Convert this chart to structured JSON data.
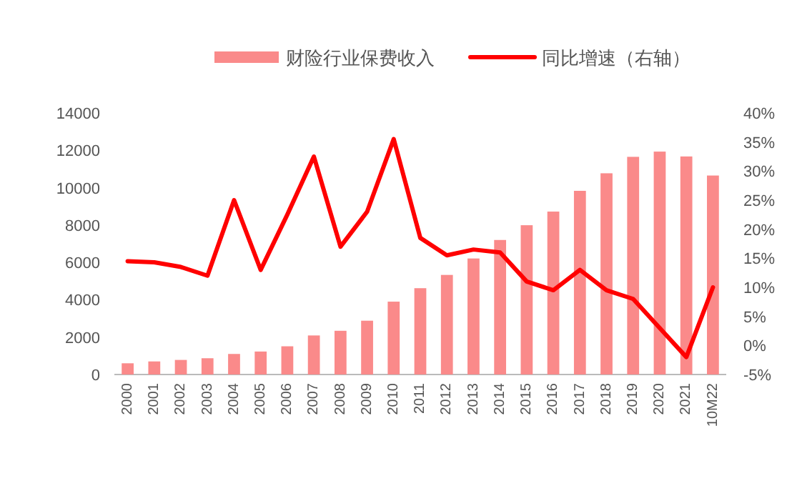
{
  "chart_data": {
    "type": "bar",
    "categories": [
      "2000",
      "2001",
      "2002",
      "2003",
      "2004",
      "2005",
      "2006",
      "2007",
      "2008",
      "2009",
      "2010",
      "2011",
      "2012",
      "2013",
      "2014",
      "2015",
      "2016",
      "2017",
      "2018",
      "2019",
      "2020",
      "2021",
      "10M22"
    ],
    "series": [
      {
        "name": "财险行业保费收入",
        "color": "#fa8a8a",
        "values": [
          600,
          700,
          780,
          870,
          1100,
          1230,
          1510,
          2090,
          2340,
          2880,
          3900,
          4620,
          5330,
          6210,
          7200,
          7990,
          8720,
          9830,
          10770,
          11650,
          11930,
          11670,
          10650
        ]
      },
      {
        "name": "同比增速（右轴）",
        "type": "line",
        "axis": "y2",
        "color": "#ff0000",
        "values": [
          14.5,
          14.3,
          13.5,
          12,
          25,
          13,
          22.5,
          32.5,
          17,
          23,
          35.5,
          18.5,
          15.5,
          16.5,
          16,
          11,
          9.5,
          13,
          9.5,
          8,
          3,
          -2,
          10
        ]
      }
    ],
    "ylim": [
      0,
      14000
    ],
    "yticks": [
      0,
      2000,
      4000,
      6000,
      8000,
      10000,
      12000,
      14000
    ],
    "y2lim": [
      -5,
      40
    ],
    "y2ticks": [
      {
        "value": -5,
        "label": "-5%"
      },
      {
        "value": 0,
        "label": "0%"
      },
      {
        "value": 5,
        "label": "5%"
      },
      {
        "value": 10,
        "label": "10%"
      },
      {
        "value": 15,
        "label": "15%"
      },
      {
        "value": 20,
        "label": "20%"
      },
      {
        "value": 25,
        "label": "25%"
      },
      {
        "value": 30,
        "label": "30%"
      },
      {
        "value": 35,
        "label": "35%"
      },
      {
        "value": 40,
        "label": "40%"
      }
    ],
    "legend": "top",
    "grid": false
  }
}
